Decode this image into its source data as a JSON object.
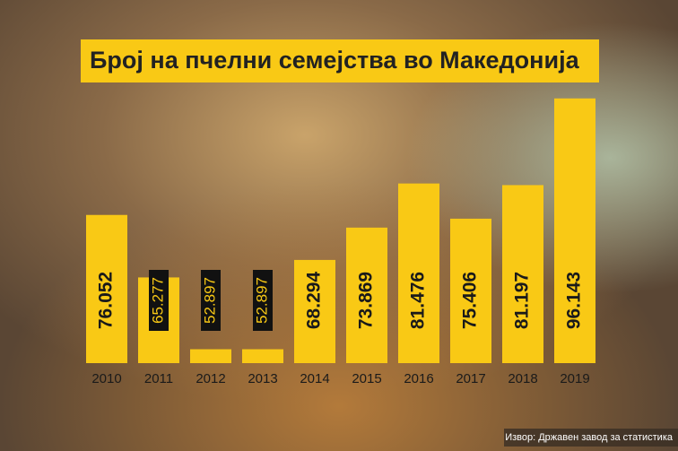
{
  "chart_data": {
    "type": "bar",
    "title": "Број на пчелни семејства во Македонија",
    "categories": [
      "2010",
      "2011",
      "2012",
      "2013",
      "2014",
      "2015",
      "2016",
      "2017",
      "2018",
      "2019"
    ],
    "values": [
      76052,
      65277,
      52897,
      52897,
      68294,
      73869,
      81476,
      75406,
      81197,
      96143
    ],
    "value_labels": [
      "76.052",
      "65.277",
      "52.897",
      "52.897",
      "68.294",
      "73.869",
      "81.476",
      "75.406",
      "81.197",
      "96.143"
    ],
    "color": "#f9c915",
    "ylim": [
      50500,
      99200
    ],
    "source": "Извор: Државен завод за статистика"
  }
}
